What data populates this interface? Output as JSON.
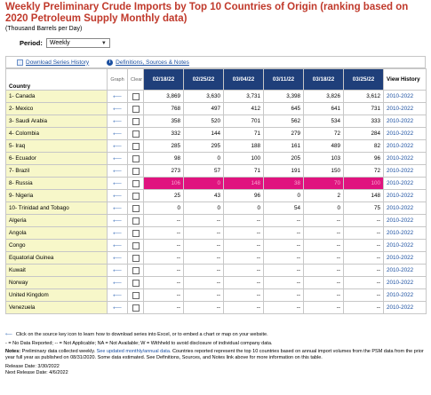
{
  "title": "Weekly Preliminary Crude Imports by Top 10 Countries of Origin (ranking based on 2020 Petroleum Supply Monthly data)",
  "units": "(Thousand Barrels per Day)",
  "period": {
    "label": "Period:",
    "value": "Weekly"
  },
  "toolbar": {
    "download": "Download Series History",
    "definitions": "Definitions, Sources & Notes"
  },
  "headers": {
    "country": "Country",
    "graph": "Graph",
    "clear": "Clear",
    "dates": [
      "02/18/22",
      "02/25/22",
      "03/04/22",
      "03/11/22",
      "03/18/22",
      "03/25/22"
    ],
    "history": "View History"
  },
  "rows": [
    {
      "country": "1- Canada",
      "values": [
        "3,869",
        "3,630",
        "3,731",
        "3,398",
        "3,826",
        "3,612"
      ],
      "history": "2010-2022"
    },
    {
      "country": "2- Mexico",
      "values": [
        "768",
        "497",
        "412",
        "645",
        "641",
        "731"
      ],
      "history": "2010-2022"
    },
    {
      "country": "3- Saudi Arabia",
      "values": [
        "358",
        "520",
        "701",
        "562",
        "534",
        "333"
      ],
      "history": "2010-2022"
    },
    {
      "country": "4- Colombia",
      "values": [
        "332",
        "144",
        "71",
        "279",
        "72",
        "284"
      ],
      "history": "2010-2022"
    },
    {
      "country": "5- Iraq",
      "values": [
        "285",
        "295",
        "188",
        "161",
        "489",
        "82"
      ],
      "history": "2010-2022"
    },
    {
      "country": "6- Ecuador",
      "values": [
        "98",
        "0",
        "100",
        "205",
        "103",
        "96"
      ],
      "history": "2010-2022"
    },
    {
      "country": "7- Brazil",
      "values": [
        "273",
        "57",
        "71",
        "191",
        "150",
        "72"
      ],
      "history": "2010-2022"
    },
    {
      "country": "8- Russia",
      "values": [
        "106",
        "0",
        "148",
        "38",
        "70",
        "100"
      ],
      "history": "2010-2022",
      "highlight": true
    },
    {
      "country": "9- Nigeria",
      "values": [
        "25",
        "43",
        "96",
        "0",
        "2",
        "148"
      ],
      "history": "2010-2022"
    },
    {
      "country": "10- Trinidad and Tobago",
      "values": [
        "0",
        "0",
        "0",
        "54",
        "0",
        "75"
      ],
      "history": "2010-2022"
    },
    {
      "country": "Algeria",
      "values": [
        "--",
        "--",
        "--",
        "--",
        "--",
        "--"
      ],
      "history": "2010-2022"
    },
    {
      "country": "Angola",
      "values": [
        "--",
        "--",
        "--",
        "--",
        "--",
        "--"
      ],
      "history": "2010-2022"
    },
    {
      "country": "Congo",
      "values": [
        "--",
        "--",
        "--",
        "--",
        "--",
        "--"
      ],
      "history": "2010-2022"
    },
    {
      "country": "Equatorial Guinea",
      "values": [
        "--",
        "--",
        "--",
        "--",
        "--",
        "--"
      ],
      "history": "2010-2022"
    },
    {
      "country": "Kuwait",
      "values": [
        "--",
        "--",
        "--",
        "--",
        "--",
        "--"
      ],
      "history": "2010-2022"
    },
    {
      "country": "Norway",
      "values": [
        "--",
        "--",
        "--",
        "--",
        "--",
        "--"
      ],
      "history": "2010-2022"
    },
    {
      "country": "United Kingdom",
      "values": [
        "--",
        "--",
        "--",
        "--",
        "--",
        "--"
      ],
      "history": "2010-2022"
    },
    {
      "country": "Venezuela",
      "values": [
        "--",
        "--",
        "--",
        "--",
        "--",
        "--"
      ],
      "history": "2010-2022"
    }
  ],
  "footer": {
    "click_note": "Click on the source key icon to learn how to download series into Excel, or to embed a chart or map on your website.",
    "legend": "- = No Data Reported;  -- = Not Applicable;  NA = Not Available;  W = Withheld to avoid disclosure of individual company data.",
    "notes_label": "Notes:",
    "notes_text_1": "Preliminary data collected weekly.",
    "notes_link": "See updated monthly/annual data.",
    "notes_text_2": "Countries reported represent the top 10 countries based on annual import volumes from the PSM data from the prior year full year as published on 08/31/2020. Some data estimated.  See Definitions, Sources, and Notes link above for more information on this table.",
    "release_date": "Release Date: 3/30/2022",
    "next_release": "Next Release Date: 4/6/2022"
  },
  "colors": {
    "title": "#c0392b",
    "header_bg": "#1f3f7a",
    "country_bg": "#f7f7c9",
    "highlight": "#e0137f",
    "link": "#1a4fa0"
  }
}
